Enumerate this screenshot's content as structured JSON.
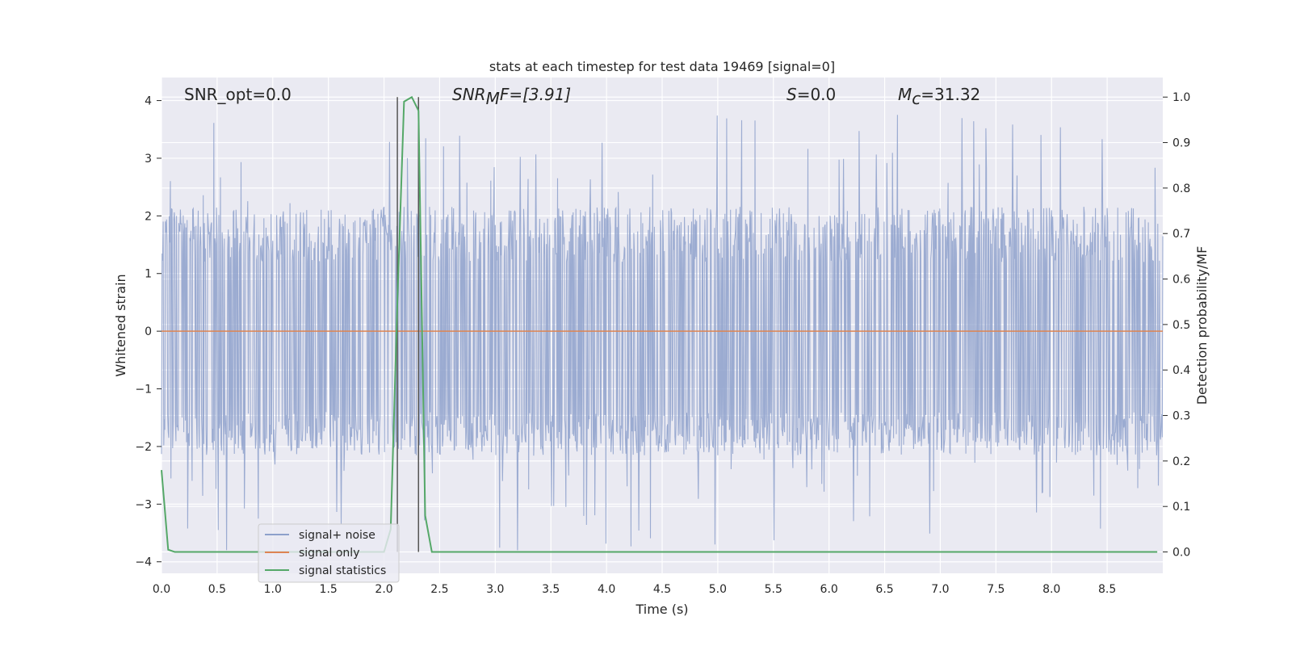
{
  "chart_data": {
    "type": "line",
    "title": "stats at each timestep for test data 19469 [signal=0]",
    "xlabel": "Time (s)",
    "ylabel": "Whitened strain",
    "y2label": "Detection probability/MF",
    "xlim": [
      0.0,
      9.0
    ],
    "ylim": [
      -4.2,
      4.4
    ],
    "y2lim": [
      -0.047,
      1.043
    ],
    "xticks": [
      0.0,
      0.5,
      1.0,
      1.5,
      2.0,
      2.5,
      3.0,
      3.5,
      4.0,
      4.5,
      5.0,
      5.5,
      6.0,
      6.5,
      7.0,
      7.5,
      8.0,
      8.5
    ],
    "yticks": [
      -4,
      -3,
      -2,
      -1,
      0,
      1,
      2,
      3,
      4
    ],
    "y2ticks": [
      0.0,
      0.1,
      0.2,
      0.3,
      0.4,
      0.5,
      0.6,
      0.7,
      0.8,
      0.9,
      1.0
    ],
    "grid": true,
    "legend_position": "lower-left",
    "annotations": {
      "snr_opt": "SNR_opt=0.0",
      "snr_mf_base": "SNR",
      "snr_mf_sub": "M",
      "snr_mf_rest": "F=[3.91]",
      "s_base": "S",
      "s_rest": "=0.0",
      "mc_base": "M",
      "mc_sub": "c",
      "mc_rest": "=31.32"
    },
    "vertical_lines": [
      2.12,
      2.31
    ],
    "series": [
      {
        "name": "signal+ noise",
        "color": "#8da0cb",
        "kind": "noise",
        "typical_envelope": [
          -1.5,
          1.6
        ],
        "extreme_range": [
          -3.9,
          4.0
        ]
      },
      {
        "name": "signal only",
        "color": "#dd8452",
        "x": [
          0.0,
          9.0
        ],
        "y": [
          0.0,
          0.0
        ]
      },
      {
        "name": "signal statistics",
        "color": "#55a868",
        "axis": "right",
        "x": [
          0.0,
          0.06,
          0.12,
          0.5,
          1.0,
          1.5,
          2.0,
          2.06,
          2.12,
          2.18,
          2.25,
          2.31,
          2.37,
          2.43,
          3.0,
          4.0,
          5.0,
          6.0,
          7.0,
          8.0,
          8.95
        ],
        "y": [
          0.18,
          0.005,
          0.0,
          0.0,
          0.0,
          0.0,
          0.0,
          0.05,
          0.55,
          0.99,
          1.0,
          0.97,
          0.08,
          0.0,
          0.0,
          0.0,
          0.0,
          0.0,
          0.0,
          0.0,
          0.0
        ]
      }
    ]
  }
}
